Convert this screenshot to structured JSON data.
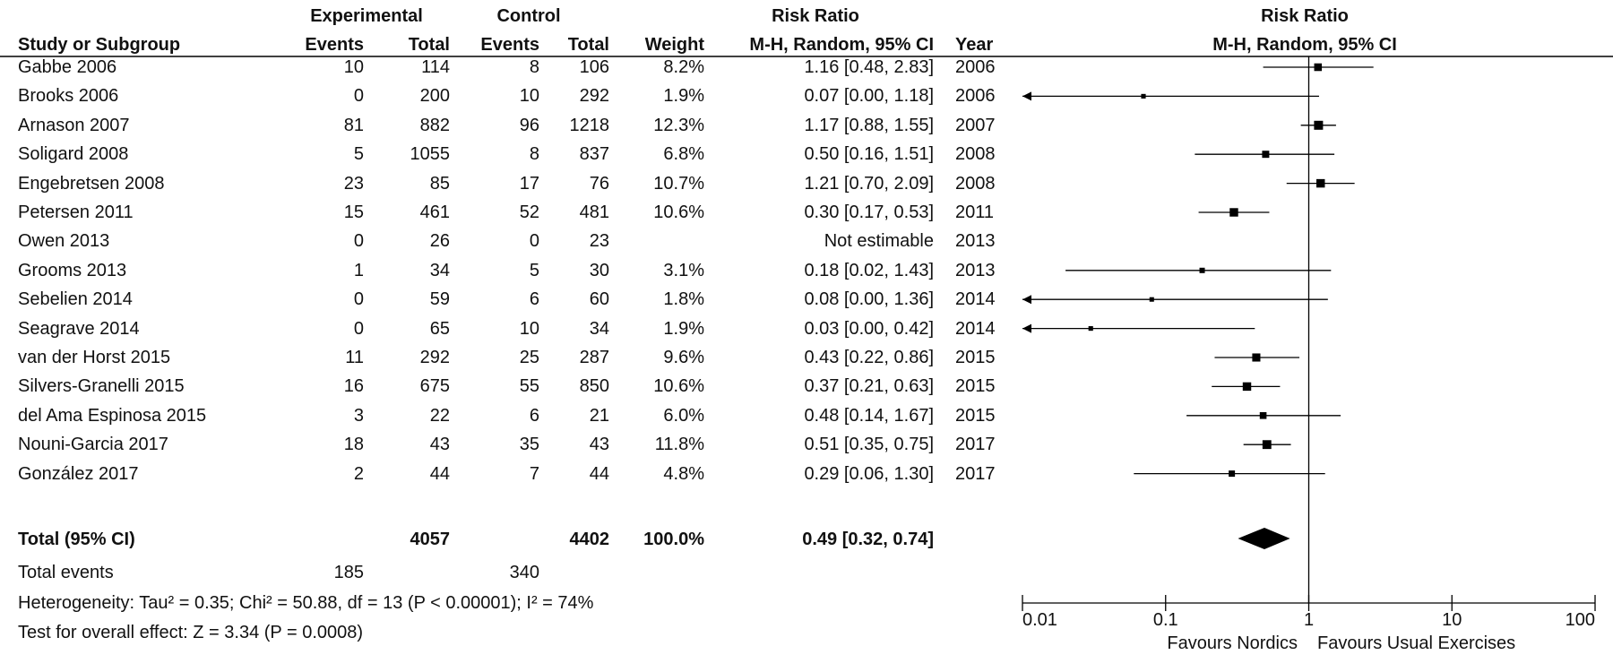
{
  "header": {
    "group1": "Experimental",
    "group2": "Control",
    "effect_top": "Risk Ratio",
    "plot_top": "Risk Ratio",
    "study_col": "Study or Subgroup",
    "events1": "Events",
    "total1": "Total",
    "events2": "Events",
    "total2": "Total",
    "weight": "Weight",
    "effect_method": "M-H, Random, 95% CI",
    "year": "Year",
    "plot_method": "M-H, Random, 95% CI"
  },
  "total": {
    "label": "Total (95% CI)",
    "total1": "4057",
    "total2": "4402",
    "weight": "100.0%",
    "effect": "0.49 [0.32, 0.74]"
  },
  "events_row": {
    "label": "Total events",
    "events1": "185",
    "events2": "340"
  },
  "heterogeneity": "Heterogeneity: Tau² = 0.35; Chi² = 50.88, df = 13 (P < 0.00001); I² = 74%",
  "overall_effect": "Test for overall effect: Z = 3.34 (P = 0.0008)",
  "chart_data": {
    "type": "forest",
    "x_scale": "log",
    "xlim": [
      0.01,
      100
    ],
    "x_ticks": [
      "0.01",
      "0.1",
      "1",
      "10",
      "100"
    ],
    "favours_left": "Favours Nordics",
    "favours_right": "Favours Usual Exercises",
    "studies": [
      {
        "study": "Gabbe 2006",
        "e1": "10",
        "t1": "114",
        "e2": "8",
        "t2": "106",
        "weight": "8.2%",
        "ci_text": "1.16 [0.48, 2.83]",
        "year": "2006",
        "rr": 1.16,
        "lo": 0.48,
        "hi": 2.83,
        "w": 8.2
      },
      {
        "study": "Brooks 2006",
        "e1": "0",
        "t1": "200",
        "e2": "10",
        "t2": "292",
        "weight": "1.9%",
        "ci_text": "0.07 [0.00, 1.18]",
        "year": "2006",
        "rr": 0.07,
        "lo": 0.0,
        "hi": 1.18,
        "w": 1.9
      },
      {
        "study": "Arnason 2007",
        "e1": "81",
        "t1": "882",
        "e2": "96",
        "t2": "1218",
        "weight": "12.3%",
        "ci_text": "1.17 [0.88, 1.55]",
        "year": "2007",
        "rr": 1.17,
        "lo": 0.88,
        "hi": 1.55,
        "w": 12.3
      },
      {
        "study": "Soligard 2008",
        "e1": "5",
        "t1": "1055",
        "e2": "8",
        "t2": "837",
        "weight": "6.8%",
        "ci_text": "0.50 [0.16, 1.51]",
        "year": "2008",
        "rr": 0.5,
        "lo": 0.16,
        "hi": 1.51,
        "w": 6.8
      },
      {
        "study": "Engebretsen 2008",
        "e1": "23",
        "t1": "85",
        "e2": "17",
        "t2": "76",
        "weight": "10.7%",
        "ci_text": "1.21 [0.70, 2.09]",
        "year": "2008",
        "rr": 1.21,
        "lo": 0.7,
        "hi": 2.09,
        "w": 10.7
      },
      {
        "study": "Petersen 2011",
        "e1": "15",
        "t1": "461",
        "e2": "52",
        "t2": "481",
        "weight": "10.6%",
        "ci_text": "0.30 [0.17, 0.53]",
        "year": "2011",
        "rr": 0.3,
        "lo": 0.17,
        "hi": 0.53,
        "w": 10.6
      },
      {
        "study": "Owen 2013",
        "e1": "0",
        "t1": "26",
        "e2": "0",
        "t2": "23",
        "weight": "",
        "ci_text": "Not estimable",
        "year": "2013",
        "rr": null,
        "lo": null,
        "hi": null,
        "w": 0
      },
      {
        "study": "Grooms 2013",
        "e1": "1",
        "t1": "34",
        "e2": "5",
        "t2": "30",
        "weight": "3.1%",
        "ci_text": "0.18 [0.02, 1.43]",
        "year": "2013",
        "rr": 0.18,
        "lo": 0.02,
        "hi": 1.43,
        "w": 3.1
      },
      {
        "study": "Sebelien 2014",
        "e1": "0",
        "t1": "59",
        "e2": "6",
        "t2": "60",
        "weight": "1.8%",
        "ci_text": "0.08 [0.00, 1.36]",
        "year": "2014",
        "rr": 0.08,
        "lo": 0.0,
        "hi": 1.36,
        "w": 1.8
      },
      {
        "study": "Seagrave 2014",
        "e1": "0",
        "t1": "65",
        "e2": "10",
        "t2": "34",
        "weight": "1.9%",
        "ci_text": "0.03 [0.00, 0.42]",
        "year": "2014",
        "rr": 0.03,
        "lo": 0.0,
        "hi": 0.42,
        "w": 1.9
      },
      {
        "study": "van der Horst 2015",
        "e1": "11",
        "t1": "292",
        "e2": "25",
        "t2": "287",
        "weight": "9.6%",
        "ci_text": "0.43 [0.22, 0.86]",
        "year": "2015",
        "rr": 0.43,
        "lo": 0.22,
        "hi": 0.86,
        "w": 9.6
      },
      {
        "study": "Silvers-Granelli 2015",
        "e1": "16",
        "t1": "675",
        "e2": "55",
        "t2": "850",
        "weight": "10.6%",
        "ci_text": "0.37 [0.21, 0.63]",
        "year": "2015",
        "rr": 0.37,
        "lo": 0.21,
        "hi": 0.63,
        "w": 10.6
      },
      {
        "study": "del Ama Espinosa 2015",
        "e1": "3",
        "t1": "22",
        "e2": "6",
        "t2": "21",
        "weight": "6.0%",
        "ci_text": "0.48 [0.14, 1.67]",
        "year": "2015",
        "rr": 0.48,
        "lo": 0.14,
        "hi": 1.67,
        "w": 6.0
      },
      {
        "study": "Nouni-Garcia 2017",
        "e1": "18",
        "t1": "43",
        "e2": "35",
        "t2": "43",
        "weight": "11.8%",
        "ci_text": "0.51 [0.35, 0.75]",
        "year": "2017",
        "rr": 0.51,
        "lo": 0.35,
        "hi": 0.75,
        "w": 11.8
      },
      {
        "study": "González 2017",
        "e1": "2",
        "t1": "44",
        "e2": "7",
        "t2": "44",
        "weight": "4.8%",
        "ci_text": "0.29 [0.06, 1.30]",
        "year": "2017",
        "rr": 0.29,
        "lo": 0.06,
        "hi": 1.3,
        "w": 4.8
      }
    ],
    "pooled": {
      "rr": 0.49,
      "lo": 0.32,
      "hi": 0.74
    }
  }
}
